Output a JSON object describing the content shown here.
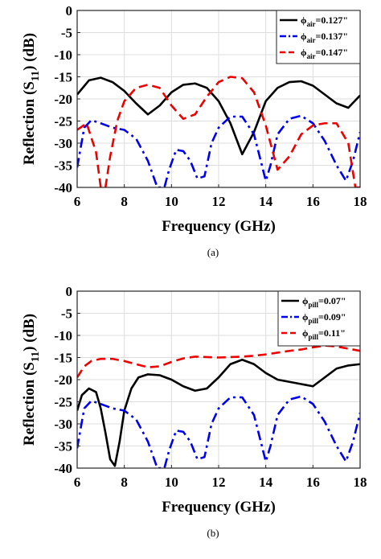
{
  "chart_data": [
    {
      "type": "line",
      "panel_caption": "(a)",
      "xlabel": "Frequency (GHz)",
      "ylabel_main": "Reflection (S",
      "ylabel_sub": "11",
      "ylabel_tail": ") (dB)",
      "xlim": [
        6,
        18
      ],
      "ylim": [
        -40,
        0
      ],
      "xticks": [
        6,
        8,
        10,
        12,
        14,
        16,
        18
      ],
      "yticks": [
        0,
        -5,
        -10,
        -15,
        -20,
        -25,
        -30,
        -35,
        -40
      ],
      "grid": true,
      "legend_position": "top-right",
      "series": [
        {
          "legend_prefix": "ϕ",
          "legend_sub": "air",
          "legend_value": "=0.127\"",
          "color": "#000000",
          "style": "solid",
          "x": [
            6.0,
            6.5,
            7.0,
            7.5,
            8.0,
            8.5,
            9.0,
            9.5,
            10.0,
            10.5,
            11.0,
            11.5,
            12.0,
            12.5,
            13.0,
            13.5,
            14.0,
            14.5,
            15.0,
            15.5,
            16.0,
            16.5,
            17.0,
            17.5,
            18.0
          ],
          "y": [
            -19.0,
            -15.8,
            -15.2,
            -16.2,
            -18.2,
            -21.0,
            -23.5,
            -21.5,
            -18.5,
            -16.8,
            -16.5,
            -17.5,
            -20.5,
            -25.5,
            -32.5,
            -27.5,
            -20.5,
            -17.5,
            -16.2,
            -16.0,
            -17.0,
            -19.0,
            -21.0,
            -22.0,
            -19.2
          ]
        },
        {
          "legend_prefix": "ϕ",
          "legend_sub": "air",
          "legend_value": "=0.137\"",
          "color": "#0000ee",
          "style": "dashdot",
          "x": [
            6.0,
            6.3,
            6.6,
            7.0,
            7.5,
            8.0,
            8.5,
            9.0,
            9.4,
            9.7,
            9.9,
            10.2,
            10.5,
            10.8,
            11.1,
            11.4,
            11.7,
            12.0,
            12.5,
            13.0,
            13.5,
            14.0,
            14.2,
            14.5,
            15.0,
            15.5,
            16.0,
            16.5,
            17.0,
            17.4,
            17.7,
            18.0
          ],
          "y": [
            -35.5,
            -26.5,
            -24.8,
            -25.5,
            -26.5,
            -27.0,
            -29.0,
            -34.0,
            -40.0,
            -40.0,
            -36.0,
            -31.5,
            -31.8,
            -34.0,
            -38.0,
            -37.5,
            -30.0,
            -26.5,
            -24.0,
            -24.0,
            -28.0,
            -38.5,
            -35.0,
            -28.0,
            -24.5,
            -23.8,
            -25.5,
            -29.5,
            -35.0,
            -38.5,
            -34.0,
            -27.5
          ]
        },
        {
          "legend_prefix": "ϕ",
          "legend_sub": "air",
          "legend_value": "=0.147\"",
          "color": "#ee0000",
          "style": "dashed",
          "x": [
            6.0,
            6.4,
            6.8,
            7.0,
            7.2,
            7.4,
            7.7,
            8.0,
            8.5,
            9.0,
            9.5,
            10.0,
            10.5,
            11.0,
            11.5,
            12.0,
            12.5,
            13.0,
            13.5,
            14.0,
            14.5,
            15.0,
            15.5,
            16.0,
            16.5,
            17.0,
            17.5,
            17.8,
            18.0
          ],
          "y": [
            -27.0,
            -25.5,
            -32.0,
            -40.0,
            -40.0,
            -33.0,
            -25.0,
            -20.5,
            -17.5,
            -16.8,
            -17.5,
            -21.5,
            -24.5,
            -23.5,
            -19.5,
            -16.2,
            -15.0,
            -15.3,
            -18.5,
            -26.0,
            -36.0,
            -33.0,
            -28.0,
            -26.0,
            -25.5,
            -25.5,
            -30.0,
            -40.0,
            -40.0
          ]
        }
      ]
    },
    {
      "type": "line",
      "panel_caption": "(b)",
      "xlabel": "Frequency (GHz)",
      "ylabel_main": "Reflection (S",
      "ylabel_sub": "11",
      "ylabel_tail": ") (dB)",
      "xlim": [
        6,
        18
      ],
      "ylim": [
        -40,
        0
      ],
      "xticks": [
        6,
        8,
        10,
        12,
        14,
        16,
        18
      ],
      "yticks": [
        0,
        -5,
        -10,
        -15,
        -20,
        -25,
        -30,
        -35,
        -40
      ],
      "grid": true,
      "legend_position": "top-right",
      "series": [
        {
          "legend_prefix": "ϕ",
          "legend_sub": "pill",
          "legend_value": "=0.07\"",
          "color": "#000000",
          "style": "solid",
          "x": [
            6.0,
            6.2,
            6.5,
            6.8,
            7.0,
            7.2,
            7.4,
            7.6,
            7.8,
            8.0,
            8.3,
            8.6,
            9.0,
            9.5,
            10.0,
            10.5,
            11.0,
            11.5,
            12.0,
            12.5,
            13.0,
            13.5,
            14.0,
            14.5,
            15.0,
            15.5,
            16.0,
            16.5,
            17.0,
            17.5,
            18.0
          ],
          "y": [
            -27.0,
            -23.5,
            -22.0,
            -22.8,
            -26.5,
            -32.0,
            -38.0,
            -39.5,
            -34.0,
            -27.0,
            -22.0,
            -19.5,
            -18.8,
            -19.0,
            -20.0,
            -21.5,
            -22.5,
            -22.0,
            -19.5,
            -16.5,
            -15.5,
            -16.5,
            -18.5,
            -20.0,
            -20.5,
            -21.0,
            -21.5,
            -19.5,
            -17.5,
            -16.8,
            -16.5
          ]
        },
        {
          "legend_prefix": "ϕ",
          "legend_sub": "pill",
          "legend_value": "=0.09\"",
          "color": "#0000ee",
          "style": "dashdot",
          "x": [
            6.0,
            6.3,
            6.6,
            7.0,
            7.5,
            8.0,
            8.5,
            9.0,
            9.4,
            9.7,
            9.9,
            10.2,
            10.5,
            10.8,
            11.1,
            11.4,
            11.7,
            12.0,
            12.5,
            13.0,
            13.5,
            14.0,
            14.2,
            14.5,
            15.0,
            15.5,
            16.0,
            16.5,
            17.0,
            17.4,
            17.7,
            18.0
          ],
          "y": [
            -35.5,
            -26.5,
            -24.8,
            -25.5,
            -26.5,
            -27.0,
            -29.0,
            -34.0,
            -40.0,
            -40.0,
            -36.0,
            -31.5,
            -31.8,
            -34.0,
            -38.0,
            -37.5,
            -30.0,
            -26.5,
            -24.0,
            -24.0,
            -28.0,
            -38.5,
            -35.0,
            -28.0,
            -24.5,
            -23.8,
            -25.5,
            -29.5,
            -35.0,
            -38.5,
            -34.0,
            -27.5
          ]
        },
        {
          "legend_prefix": "ϕ",
          "legend_sub": "pill",
          "legend_value": "=0.11\"",
          "color": "#ee0000",
          "style": "dashed",
          "x": [
            6.0,
            6.3,
            6.6,
            7.0,
            7.5,
            8.0,
            8.5,
            9.0,
            9.5,
            10.0,
            10.5,
            11.0,
            11.5,
            12.0,
            12.5,
            13.0,
            13.5,
            14.0,
            14.5,
            15.0,
            15.5,
            16.0,
            16.5,
            17.0,
            17.5,
            18.0
          ],
          "y": [
            -19.5,
            -17.0,
            -15.8,
            -15.3,
            -15.3,
            -15.8,
            -16.5,
            -17.2,
            -17.0,
            -16.0,
            -15.2,
            -14.8,
            -14.9,
            -15.0,
            -14.9,
            -14.8,
            -14.6,
            -14.3,
            -13.9,
            -13.5,
            -13.2,
            -12.7,
            -12.3,
            -12.5,
            -13.0,
            -13.5
          ]
        }
      ]
    }
  ]
}
